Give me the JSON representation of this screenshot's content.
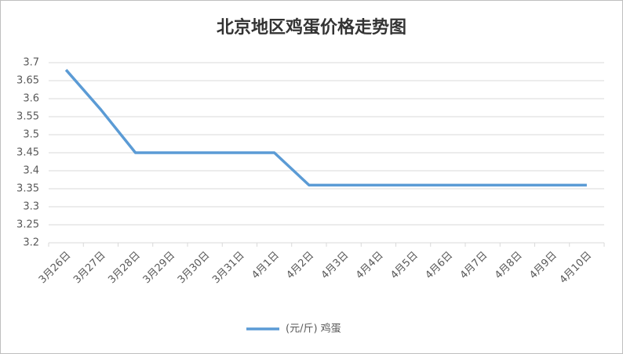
{
  "chart_data": {
    "type": "line",
    "title": "北京地区鸡蛋价格走势图",
    "categories": [
      "3月26日",
      "3月27日",
      "3月28日",
      "3月29日",
      "3月30日",
      "3月31日",
      "4月1日",
      "4月2日",
      "4月3日",
      "4月4日",
      "4月5日",
      "4月6日",
      "4月7日",
      "4月8日",
      "4月9日",
      "4月10日"
    ],
    "series": [
      {
        "name": "(元/斤) 鸡蛋",
        "color": "#5b9bd5",
        "values": [
          3.68,
          3.57,
          3.45,
          3.45,
          3.45,
          3.45,
          3.45,
          3.36,
          3.36,
          3.36,
          3.36,
          3.36,
          3.36,
          3.36,
          3.36,
          3.36
        ]
      }
    ],
    "ylim": [
      3.2,
      3.7
    ],
    "yticks": [
      3.2,
      3.25,
      3.3,
      3.35,
      3.4,
      3.45,
      3.5,
      3.55,
      3.6,
      3.65,
      3.7
    ],
    "grid": true,
    "legend": "bottom"
  }
}
